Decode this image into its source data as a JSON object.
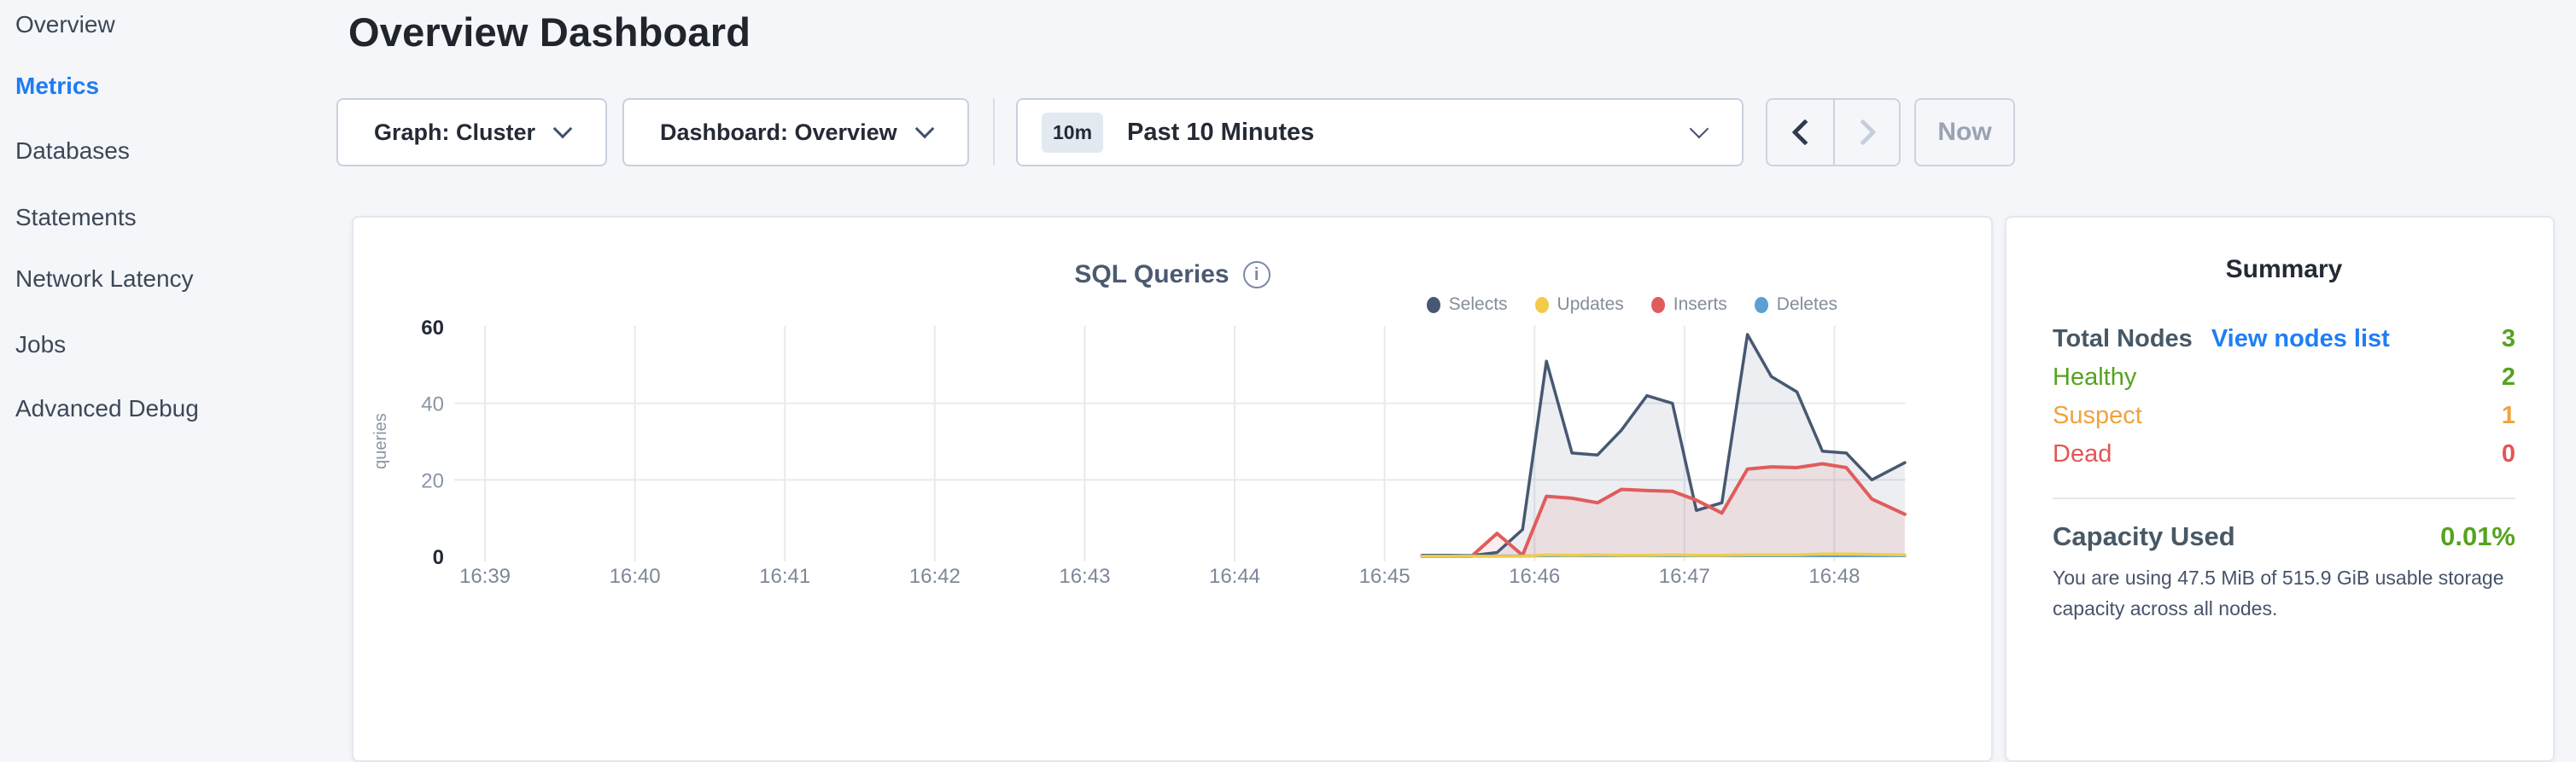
{
  "sidebar": {
    "items": [
      {
        "label": "Overview",
        "active": false
      },
      {
        "label": "Metrics",
        "active": true
      },
      {
        "label": "Databases",
        "active": false
      },
      {
        "label": "Statements",
        "active": false
      },
      {
        "label": "Network Latency",
        "active": false
      },
      {
        "label": "Jobs",
        "active": false
      },
      {
        "label": "Advanced Debug",
        "active": false
      }
    ]
  },
  "header": {
    "title": "Overview Dashboard"
  },
  "toolbar": {
    "graph_dropdown_label": "Graph: Cluster",
    "dashboard_dropdown_label": "Dashboard: Overview",
    "time_range_badge": "10m",
    "time_range_label": "Past 10 Minutes",
    "now_button_label": "Now"
  },
  "chart_card": {
    "title": "SQL Queries"
  },
  "chart_data": {
    "type": "area",
    "title": "SQL Queries",
    "xlabel": "",
    "ylabel": "queries",
    "ylim": [
      0,
      60
    ],
    "yticks": [
      0,
      20,
      40,
      60
    ],
    "xticks": [
      "16:39",
      "16:40",
      "16:41",
      "16:42",
      "16:43",
      "16:44",
      "16:45",
      "16:46",
      "16:47",
      "16:48"
    ],
    "grid": true,
    "legend_position": "top-right",
    "note": "data only present from ~16:45:15 to ~16:48:28",
    "sample_x_minutes_after_16_39": [
      6.25,
      6.42,
      6.58,
      6.75,
      6.92,
      7.08,
      7.25,
      7.42,
      7.58,
      7.75,
      7.92,
      8.08,
      8.25,
      8.42,
      8.58,
      8.75,
      8.92,
      9.08,
      9.25,
      9.47
    ],
    "series": [
      {
        "name": "Selects",
        "color": "#475872",
        "fill": "rgba(71,88,114,0.10)",
        "values": [
          0.3,
          0.3,
          0.2,
          1,
          7,
          51,
          27,
          26.5,
          33,
          42,
          40,
          12,
          14,
          58,
          47,
          43,
          27.5,
          27,
          20,
          24.5
        ]
      },
      {
        "name": "Updates",
        "color": "#f2cb49",
        "fill": "none",
        "values": [
          0,
          0,
          0,
          0,
          0,
          0.4,
          0.3,
          0.4,
          0.3,
          0.3,
          0.4,
          0.3,
          0.3,
          0.4,
          0.4,
          0.4,
          0.6,
          0.6,
          0.5,
          0.4
        ]
      },
      {
        "name": "Inserts",
        "color": "#e05c5c",
        "fill": "rgba(224,92,92,0.10)",
        "values": [
          0,
          0,
          0,
          6,
          0.3,
          15.7,
          15.2,
          14,
          17.5,
          17.2,
          17,
          14.7,
          11.3,
          22.8,
          23.4,
          23.2,
          24.2,
          23.2,
          15,
          11
        ]
      },
      {
        "name": "Deletes",
        "color": "#5b9fd3",
        "fill": "none",
        "values": [
          0.1,
          0.1,
          0.1,
          0.1,
          0.1,
          0.15,
          0.15,
          0.15,
          0.15,
          0.15,
          0.15,
          0.15,
          0.15,
          0.15,
          0.15,
          0.15,
          0.15,
          0.15,
          0.15,
          0.15
        ]
      }
    ]
  },
  "summary": {
    "title": "Summary",
    "total_nodes_label": "Total Nodes",
    "view_nodes_link": "View nodes list",
    "total_nodes_value": "3",
    "rows": [
      {
        "label": "Healthy",
        "value": "2",
        "color": "#55a31f"
      },
      {
        "label": "Suspect",
        "value": "1",
        "color": "#f0a33c"
      },
      {
        "label": "Dead",
        "value": "0",
        "color": "#e25654"
      }
    ],
    "capacity_label": "Capacity Used",
    "capacity_value": "0.01%",
    "capacity_caption": "You are using 47.5 MiB of 515.9 GiB usable storage capacity across all nodes."
  },
  "colors": {
    "accent_blue": "#1f7cf2",
    "healthy_green": "#55a31f",
    "suspect_orange": "#f0a33c",
    "dead_red": "#e25654",
    "selects": "#475872",
    "updates": "#f2cb49",
    "inserts": "#e05c5c",
    "deletes": "#5b9fd3",
    "page_bg": "#f4f6fa",
    "card_bg": "#ffffff"
  }
}
